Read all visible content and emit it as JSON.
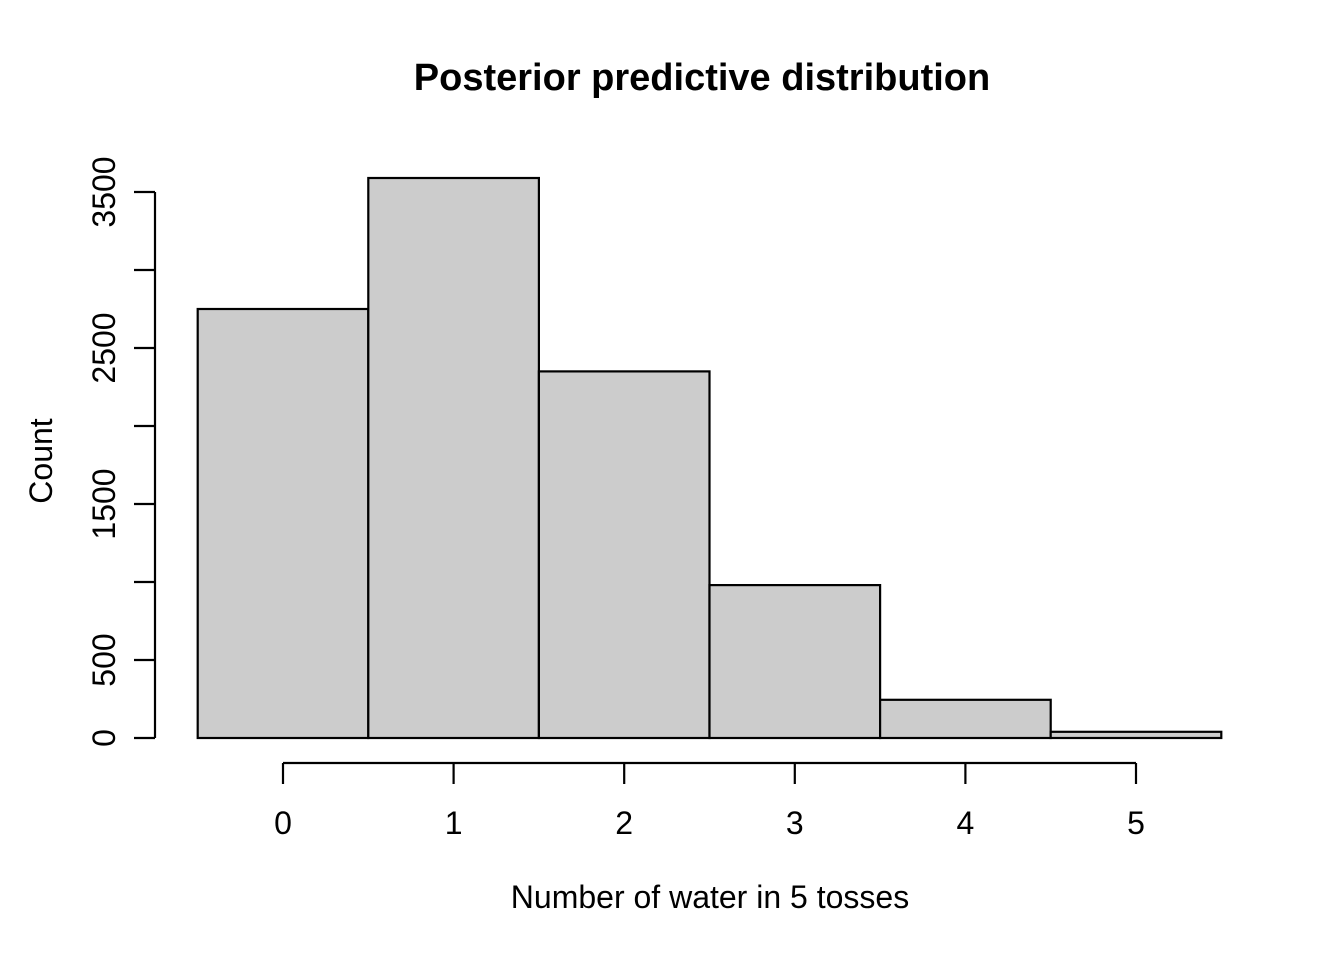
{
  "figure": {
    "background": "#ffffff"
  },
  "chart_data": {
    "type": "bar",
    "subtype": "histogram",
    "title": "Posterior predictive distribution",
    "xlabel": "Number of water in 5 tosses",
    "ylabel": "Count",
    "categories": [
      0,
      1,
      2,
      3,
      4,
      5
    ],
    "values": [
      2750,
      3590,
      2350,
      980,
      245,
      40
    ],
    "xlim": [
      -0.5,
      5.5
    ],
    "ylim": [
      0,
      3500
    ],
    "x_tick_values": [
      0,
      1,
      2,
      3,
      4,
      5
    ],
    "x_tick_labels": [
      "0",
      "1",
      "2",
      "3",
      "4",
      "5"
    ],
    "y_tick_values": [
      0,
      500,
      1000,
      1500,
      2000,
      2500,
      3000,
      3500
    ],
    "y_tick_labels": [
      "0",
      "500",
      "",
      "1500",
      "",
      "2500",
      "",
      "3500"
    ],
    "grid": false,
    "legend": null,
    "colors": {
      "bar_fill": "#cccccc",
      "bar_stroke": "#000000",
      "axis": "#000000",
      "text": "#000000",
      "background": "#ffffff"
    }
  }
}
